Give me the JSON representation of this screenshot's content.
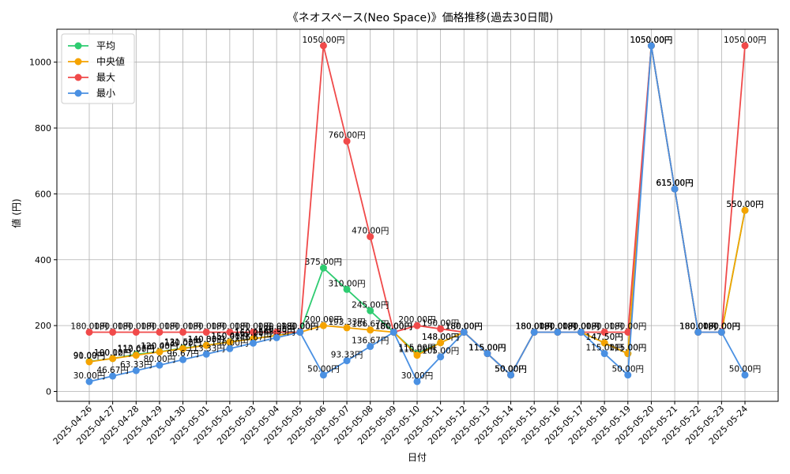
{
  "chart_data": {
    "type": "line",
    "title": "《ネオスペース(Neo Space)》価格推移(過去30日間)",
    "xlabel": "日付",
    "ylabel": "値 (円)",
    "ylim": [
      -30,
      1100
    ],
    "yticks": [
      0,
      200,
      400,
      600,
      800,
      1000
    ],
    "grid": true,
    "legend_position": "top-left",
    "categories": [
      "2025-04-26",
      "2025-04-27",
      "2025-04-28",
      "2025-04-29",
      "2025-04-30",
      "2025-05-01",
      "2025-05-02",
      "2025-05-03",
      "2025-05-04",
      "2025-05-05",
      "2025-05-06",
      "2025-05-07",
      "2025-05-08",
      "2025-05-09",
      "2025-05-10",
      "2025-05-11",
      "2025-05-12",
      "2025-05-13",
      "2025-05-14",
      "2025-05-15",
      "2025-05-16",
      "2025-05-17",
      "2025-05-18",
      "2025-05-19",
      "2025-05-20",
      "2025-05-21",
      "2025-05-22",
      "2025-05-23",
      "2025-05-24"
    ],
    "value_suffix": "円",
    "series": [
      {
        "name": "平均",
        "color": "#2ecc71",
        "values": [
          91.09,
          100.12,
          112.67,
          120.45,
          131.52,
          140.33,
          150.41,
          160.25,
          170.38,
          180.0,
          375.0,
          310.0,
          245.0,
          180.0,
          115.0,
          148.0,
          180.0,
          115.0,
          50.0,
          180.0,
          180.0,
          180.0,
          147.5,
          115.0,
          1050.0,
          615.0,
          180.0,
          180.0,
          550.0
        ]
      },
      {
        "name": "中央値",
        "color": "#f5a300",
        "values": [
          90.0,
          100.0,
          110.0,
          120.0,
          130.0,
          140.0,
          150.0,
          160.0,
          170.0,
          180.0,
          200.0,
          193.33,
          186.67,
          180.0,
          110.0,
          148.0,
          180.0,
          115.0,
          50.0,
          180.0,
          180.0,
          180.0,
          147.5,
          115.0,
          1050.0,
          615.0,
          180.0,
          180.0,
          550.0
        ]
      },
      {
        "name": "最大",
        "color": "#f04a4a",
        "values": [
          180.0,
          180.0,
          180.0,
          180.0,
          180.0,
          180.0,
          180.0,
          180.0,
          180.0,
          180.0,
          1050.0,
          760.0,
          470.0,
          180.0,
          200.0,
          190.0,
          180.0,
          115.0,
          50.0,
          180.0,
          180.0,
          180.0,
          180.0,
          180.0,
          1050.0,
          615.0,
          180.0,
          180.0,
          1050.0
        ]
      },
      {
        "name": "最小",
        "color": "#4a90e2",
        "values": [
          30.0,
          46.67,
          63.33,
          80.0,
          96.67,
          113.33,
          130.0,
          146.67,
          163.33,
          180.0,
          50.0,
          93.33,
          136.67,
          180.0,
          30.0,
          105.0,
          180.0,
          115.0,
          50.0,
          180.0,
          180.0,
          180.0,
          115.0,
          50.0,
          1050.0,
          615.0,
          180.0,
          180.0,
          50.0
        ]
      }
    ]
  }
}
